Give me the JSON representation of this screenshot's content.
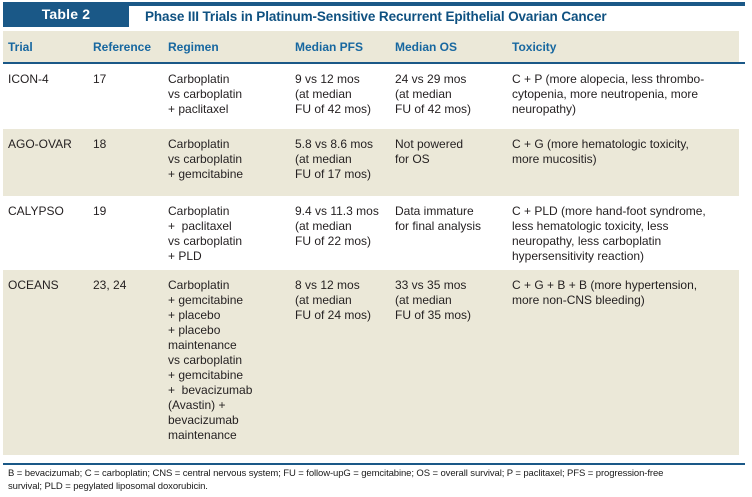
{
  "colors": {
    "accent_blue": "#1a5887",
    "title_blue": "#0f5181",
    "column_header_blue": "#1767a0",
    "band_beige": "#ebe8d8",
    "body_text": "#231f20"
  },
  "header": {
    "tag": "Table 2",
    "title": "Phase III Trials in Platinum-Sensitive Recurrent Epithelial Ovarian Cancer"
  },
  "columns": {
    "trial": "Trial",
    "reference": "Reference",
    "regimen": "Regimen",
    "median_pfs": "Median PFS",
    "median_os": "Median OS",
    "toxicity": "Toxicity"
  },
  "rows": [
    {
      "trial": "ICON-4",
      "reference": "17",
      "regimen": [
        "Carboplatin",
        "vs carboplatin",
        "+ paclitaxel"
      ],
      "median_pfs": [
        "9 vs 12 mos",
        "(at median",
        "FU of 42 mos)"
      ],
      "median_os": [
        "24 vs 29 mos",
        "(at median",
        "FU of 42 mos)"
      ],
      "toxicity": [
        "C + P (more alopecia, less thrombo-",
        "cytopenia, more neutropenia, more",
        "neuropathy)"
      ]
    },
    {
      "trial": "AGO-OVAR",
      "reference": "18",
      "regimen": [
        "Carboplatin",
        "vs carboplatin",
        "+ gemcitabine"
      ],
      "median_pfs": [
        "5.8 vs 8.6 mos",
        "(at median",
        "FU of 17 mos)"
      ],
      "median_os": [
        "Not powered",
        "for OS"
      ],
      "toxicity": [
        "C + G (more hematologic toxicity,",
        "more mucositis)"
      ]
    },
    {
      "trial": "CALYPSO",
      "reference": "19",
      "regimen": [
        "Carboplatin",
        "+  paclitaxel",
        "vs carboplatin",
        "+ PLD"
      ],
      "median_pfs": [
        "9.4 vs 11.3 mos",
        "(at median",
        "FU of 22 mos)"
      ],
      "median_os": [
        "Data immature",
        "for final analysis"
      ],
      "toxicity": [
        "C + PLD (more hand-foot syndrome,",
        "less hematologic toxicity, less",
        "neuropathy, less carboplatin",
        "hypersensitivity reaction)"
      ]
    },
    {
      "trial": "OCEANS",
      "reference": "23, 24",
      "regimen": [
        "Carboplatin",
        "+ gemcitabine",
        "+ placebo",
        "+ placebo",
        "maintenance",
        "vs carboplatin",
        "+ gemcitabine",
        "+  bevacizumab",
        "(Avastin) +",
        "bevacizumab",
        "maintenance"
      ],
      "median_pfs": [
        "8 vs 12 mos",
        "(at median",
        "FU of 24 mos)"
      ],
      "median_os": [
        "33 vs 35 mos",
        "(at median",
        "FU of 35 mos)"
      ],
      "toxicity": [
        "C + G + B + B (more hypertension,",
        "more non-CNS bleeding)"
      ]
    }
  ],
  "footnote": [
    "B = bevacizumab; C = carboplatin; CNS = central nervous system; FU = follow-upG = gemcitabine; OS = overall survival; P = paclitaxel; PFS = progression-free",
    "survival; PLD = pegylated liposomal doxorubicin."
  ]
}
